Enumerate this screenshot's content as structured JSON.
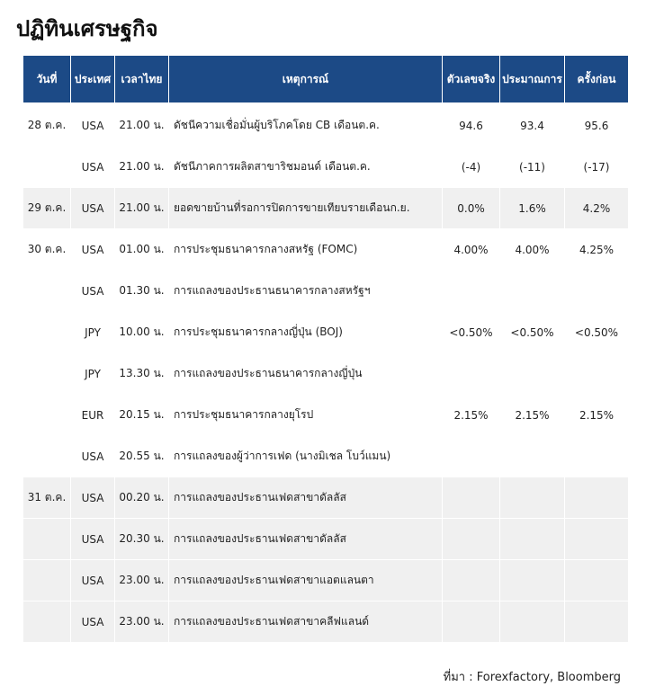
{
  "title": "ปฏิทินเศรษฐกิจ",
  "table": {
    "columns": [
      "วันที่",
      "ประเทศ",
      "เวลาไทย",
      "เหตุการณ์",
      "ตัวเลขจริง",
      "ประมาณการ",
      "ครั้งก่อน"
    ],
    "groups": [
      {
        "date": "28 ต.ค.",
        "rows": [
          {
            "country": "USA",
            "time": "21.00 น.",
            "event": "ดัชนีความเชื่อมั่นผู้บริโภคโดย CB เดือนต.ค.",
            "actual": "94.6",
            "forecast": "93.4",
            "previous": "95.6"
          },
          {
            "country": "USA",
            "time": "21.00 น.",
            "event": "ดัชนีภาคการผลิตสาขาริชมอนด์ เดือนต.ค.",
            "actual": "(-4)",
            "forecast": "(-11)",
            "previous": "(-17)"
          }
        ]
      },
      {
        "date": "29 ต.ค.",
        "rows": [
          {
            "country": "USA",
            "time": "21.00 น.",
            "event": "ยอดขายบ้านที่รอการปิดการขายเทียบรายเดือนก.ย.",
            "actual": "0.0%",
            "forecast": "1.6%",
            "previous": "4.2%"
          }
        ]
      },
      {
        "date": "30 ต.ค.",
        "rows": [
          {
            "country": "USA",
            "time": "01.00 น.",
            "event": "การประชุมธนาคารกลางสหรัฐ (FOMC)",
            "actual": "4.00%",
            "forecast": "4.00%",
            "previous": "4.25%"
          },
          {
            "country": "USA",
            "time": "01.30 น.",
            "event": "การแถลงของประธานธนาคารกลางสหรัฐฯ"
          },
          {
            "country": "JPY",
            "time": "10.00 น.",
            "event": "การประชุมธนาคารกลางญี่ปุ่น (BOJ)",
            "actual": "<0.50%",
            "forecast": "<0.50%",
            "previous": "<0.50%"
          },
          {
            "country": "JPY",
            "time": "13.30 น.",
            "event": "การแถลงของประธานธนาคารกลางญี่ปุ่น"
          },
          {
            "country": "EUR",
            "time": "20.15 น.",
            "event": "การประชุมธนาคารกลางยุโรป",
            "actual": "2.15%",
            "forecast": "2.15%",
            "previous": "2.15%"
          },
          {
            "country": "USA",
            "time": "20.55 น.",
            "event": "การแถลงของผู้ว่าการเฟด (นางมิเชล โบว์แมน)"
          }
        ]
      },
      {
        "date": "31 ต.ค.",
        "rows": [
          {
            "country": "USA",
            "time": "00.20 น.",
            "event": "การแถลงของประธานเฟดสาขาดัลลัส"
          },
          {
            "country": "USA",
            "time": "20.30 น.",
            "event": "การแถลงของประธานเฟดสาขาดัลลัส"
          },
          {
            "country": "USA",
            "time": "23.00 น.",
            "event": "การแถลงของประธานเฟดสาขาแอตแลนตา"
          },
          {
            "country": "USA",
            "time": "23.00 น.",
            "event": "การแถลงของประธานเฟดสาขาคลีฟแลนด์"
          }
        ]
      }
    ]
  },
  "source": "ที่มา : Forexfactory, Bloomberg"
}
